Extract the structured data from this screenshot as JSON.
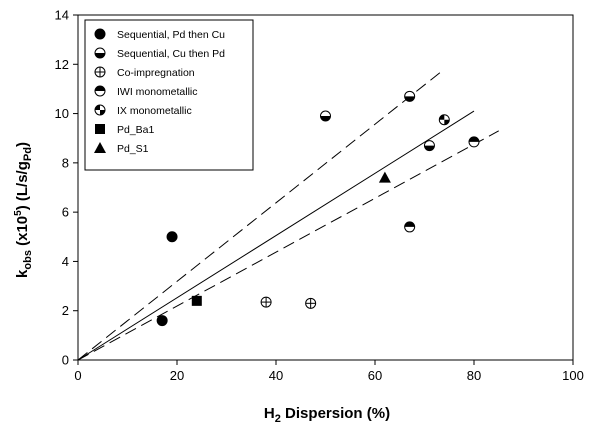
{
  "chart_data": {
    "type": "scatter",
    "xlabel": "H2 Dispersion (%)",
    "ylabel": "kobs (x105) (L/s/gPd)",
    "xlim": [
      0,
      100
    ],
    "ylim": [
      0,
      14
    ],
    "xticks": [
      0,
      20,
      40,
      60,
      80,
      100
    ],
    "yticks": [
      0,
      2,
      4,
      6,
      8,
      10,
      12,
      14
    ],
    "grid": false,
    "legend_position": "top-left",
    "series": [
      {
        "name": "Sequential, Pd then Cu",
        "marker": "filled-circle",
        "points": [
          [
            17,
            1.6
          ],
          [
            19,
            5.0
          ]
        ]
      },
      {
        "name": "Sequential, Cu then Pd",
        "marker": "half-bottom-circle",
        "points": [
          [
            50,
            9.9
          ],
          [
            67,
            10.7
          ],
          [
            71,
            8.7
          ]
        ]
      },
      {
        "name": "Co-impregnation",
        "marker": "crossed-circle",
        "points": [
          [
            38,
            2.35
          ],
          [
            47,
            2.3
          ]
        ]
      },
      {
        "name": "IWI monometallic",
        "marker": "half-top-circle",
        "points": [
          [
            67,
            5.4
          ],
          [
            80,
            8.85
          ]
        ]
      },
      {
        "name": "IX monometallic",
        "marker": "quarter-circle",
        "points": [
          [
            74,
            9.75
          ]
        ]
      },
      {
        "name": "Pd_Ba1",
        "marker": "filled-square",
        "points": [
          [
            24,
            2.4
          ]
        ]
      },
      {
        "name": "Pd_S1",
        "marker": "filled-triangle",
        "points": [
          [
            62,
            7.4
          ]
        ]
      }
    ],
    "fit_lines": [
      {
        "style": "dashed",
        "from": [
          0,
          0
        ],
        "to": [
          74,
          11.8
        ]
      },
      {
        "style": "solid",
        "from": [
          0,
          0
        ],
        "to": [
          80,
          10.1
        ]
      },
      {
        "style": "dashed",
        "from": [
          0,
          0
        ],
        "to": [
          85,
          9.3
        ]
      }
    ]
  }
}
